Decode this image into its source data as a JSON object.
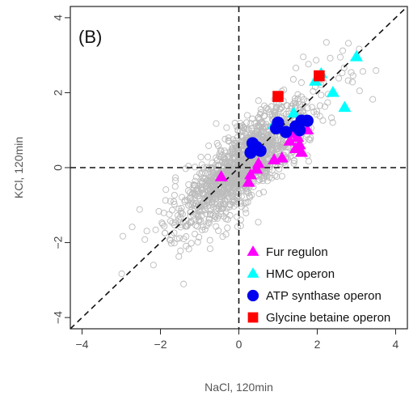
{
  "chart_data": {
    "type": "scatter",
    "panel_label": "(B)",
    "xlabel": "NaCl, 120min",
    "ylabel": "KCl, 120min",
    "xlim": [
      -4.3,
      4.3
    ],
    "ylim": [
      -4.3,
      4.3
    ],
    "xticks": [
      -4,
      -2,
      0,
      2,
      4
    ],
    "yticks": [
      -4,
      -2,
      0,
      2,
      4
    ],
    "xtick_labels": [
      "−4",
      "−2",
      "0",
      "2",
      "4"
    ],
    "ytick_labels": [
      "−4",
      "−2",
      "0",
      "2",
      "4"
    ],
    "grid": false,
    "reference_lines": {
      "x": 0,
      "y": 0,
      "diagonal": true
    },
    "legend_position": "bottom-right",
    "background_cloud": {
      "color": "#bbbbbb",
      "marker": "open-circle",
      "count": 1400,
      "spread_along": 1.05,
      "spread_across": 0.32
    },
    "series": [
      {
        "name": "Fur regulon",
        "marker": "triangle",
        "color": "#ff00ff",
        "points": [
          [
            -0.45,
            -0.25
          ],
          [
            0.25,
            -0.4
          ],
          [
            0.3,
            -0.2
          ],
          [
            0.5,
            0.1
          ],
          [
            0.45,
            -0.05
          ],
          [
            0.9,
            0.2
          ],
          [
            1.1,
            0.25
          ],
          [
            1.3,
            0.7
          ],
          [
            1.45,
            0.5
          ],
          [
            1.55,
            0.6
          ],
          [
            1.5,
            0.8
          ],
          [
            1.6,
            0.4
          ],
          [
            1.75,
            1.0
          ],
          [
            1.4,
            0.9
          ]
        ]
      },
      {
        "name": "HMC operon",
        "marker": "triangle",
        "color": "#00ffff",
        "points": [
          [
            0.9,
            1.15
          ],
          [
            1.4,
            1.45
          ],
          [
            1.95,
            2.3
          ],
          [
            2.1,
            2.5
          ],
          [
            2.4,
            2.0
          ],
          [
            2.7,
            1.6
          ],
          [
            3.0,
            2.95
          ]
        ]
      },
      {
        "name": "ATP synthase operon",
        "marker": "circle",
        "color": "#0000ee",
        "points": [
          [
            0.3,
            0.4
          ],
          [
            0.35,
            0.65
          ],
          [
            0.45,
            0.55
          ],
          [
            0.55,
            0.45
          ],
          [
            0.95,
            1.05
          ],
          [
            1.0,
            1.2
          ],
          [
            1.2,
            0.95
          ],
          [
            1.45,
            1.1
          ],
          [
            1.6,
            1.25
          ],
          [
            1.75,
            1.25
          ],
          [
            1.55,
            1.0
          ]
        ]
      },
      {
        "name": "Glycine betaine operon",
        "marker": "square",
        "color": "#ff0000",
        "points": [
          [
            1.0,
            1.9
          ],
          [
            2.05,
            2.45
          ]
        ]
      }
    ]
  }
}
